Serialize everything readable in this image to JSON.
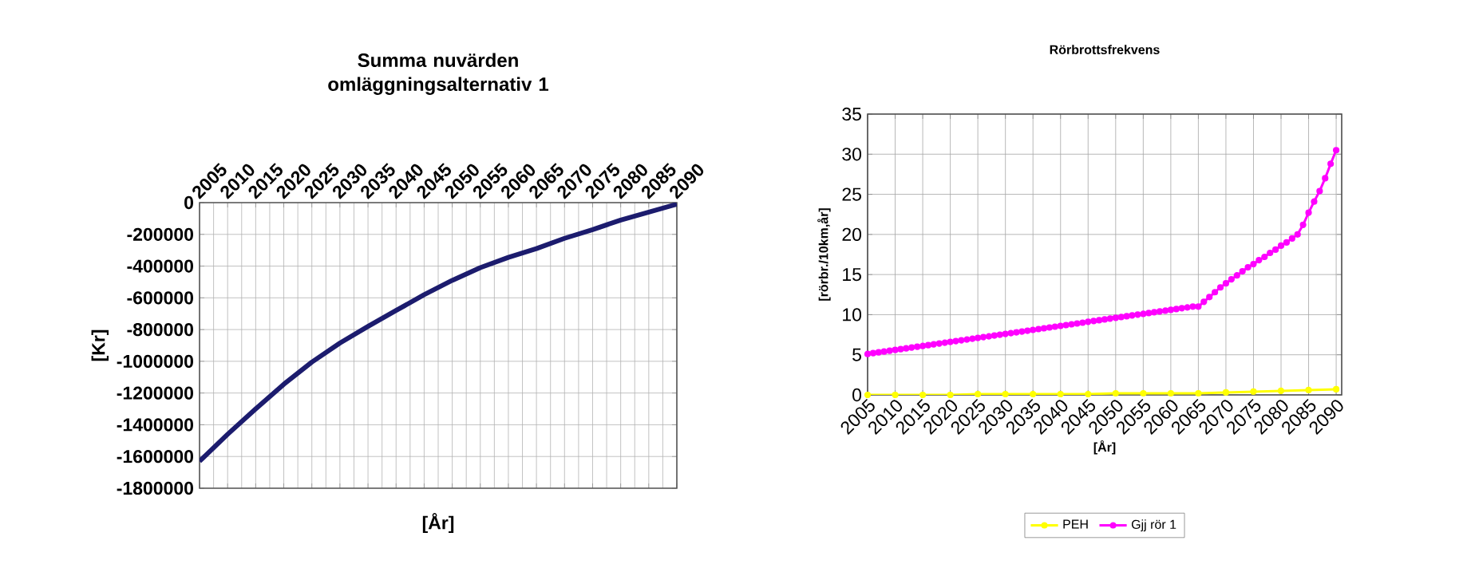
{
  "chart_data": [
    {
      "type": "line",
      "title": "Summa nuvärden omläggningsalternativ 1",
      "xlabel": "[År]",
      "ylabel": "[Kr]",
      "x": [
        2005,
        2010,
        2015,
        2020,
        2025,
        2030,
        2035,
        2040,
        2045,
        2050,
        2055,
        2060,
        2065,
        2070,
        2075,
        2080,
        2085,
        2090
      ],
      "values": [
        -1630000,
        -1460000,
        -1300000,
        -1145000,
        -1005000,
        -885000,
        -780000,
        -680000,
        -580000,
        -490000,
        -410000,
        -345000,
        -290000,
        -225000,
        -170000,
        -110000,
        -60000,
        -10000
      ],
      "color": "#1c1c6e",
      "xlim": [
        2005,
        2090
      ],
      "xticks": [
        2005,
        2010,
        2015,
        2020,
        2025,
        2030,
        2035,
        2040,
        2045,
        2050,
        2055,
        2060,
        2065,
        2070,
        2075,
        2080,
        2085,
        2090
      ],
      "ylim": [
        -1800000,
        0
      ],
      "yticks": [
        -1800000,
        -1600000,
        -1400000,
        -1200000,
        -1000000,
        -800000,
        -600000,
        -400000,
        -200000,
        0
      ],
      "grid": true,
      "marker": "none"
    },
    {
      "type": "line",
      "title": "Rörbrottsfrekvens",
      "xlabel": "[År]",
      "ylabel": "[rörbr./10km,år]",
      "series": [
        {
          "name": "PEH",
          "color": "#ffff00",
          "x": [
            2005,
            2010,
            2015,
            2020,
            2025,
            2030,
            2035,
            2040,
            2045,
            2050,
            2055,
            2060,
            2065,
            2070,
            2075,
            2080,
            2085,
            2090
          ],
          "values": [
            0.0,
            0.0,
            0.0,
            0.0,
            0.1,
            0.1,
            0.1,
            0.1,
            0.1,
            0.2,
            0.2,
            0.2,
            0.2,
            0.3,
            0.4,
            0.5,
            0.6,
            0.7
          ]
        },
        {
          "name": "Gjj rör 1",
          "color": "#ff00ff",
          "x": [
            2005,
            2006,
            2007,
            2008,
            2009,
            2010,
            2011,
            2012,
            2013,
            2014,
            2015,
            2016,
            2017,
            2018,
            2019,
            2020,
            2021,
            2022,
            2023,
            2024,
            2025,
            2026,
            2027,
            2028,
            2029,
            2030,
            2031,
            2032,
            2033,
            2034,
            2035,
            2036,
            2037,
            2038,
            2039,
            2040,
            2041,
            2042,
            2043,
            2044,
            2045,
            2046,
            2047,
            2048,
            2049,
            2050,
            2051,
            2052,
            2053,
            2054,
            2055,
            2056,
            2057,
            2058,
            2059,
            2060,
            2061,
            2062,
            2063,
            2064,
            2065,
            2066,
            2067,
            2068,
            2069,
            2070,
            2071,
            2072,
            2073,
            2074,
            2075,
            2076,
            2077,
            2078,
            2079,
            2080,
            2081,
            2082,
            2083,
            2084,
            2085,
            2086,
            2087,
            2088,
            2089,
            2090
          ],
          "values": [
            5.1,
            5.2,
            5.3,
            5.4,
            5.5,
            5.6,
            5.7,
            5.8,
            5.9,
            6.0,
            6.1,
            6.2,
            6.3,
            6.4,
            6.5,
            6.6,
            6.7,
            6.8,
            6.9,
            7.0,
            7.1,
            7.2,
            7.3,
            7.4,
            7.5,
            7.6,
            7.7,
            7.8,
            7.9,
            8.0,
            8.1,
            8.2,
            8.3,
            8.4,
            8.5,
            8.6,
            8.7,
            8.8,
            8.9,
            9.0,
            9.1,
            9.2,
            9.3,
            9.4,
            9.5,
            9.6,
            9.7,
            9.8,
            9.9,
            10.0,
            10.1,
            10.2,
            10.3,
            10.4,
            10.5,
            10.6,
            10.7,
            10.8,
            10.9,
            11.0,
            11.0,
            11.6,
            12.2,
            12.8,
            13.4,
            13.9,
            14.4,
            14.9,
            15.4,
            15.9,
            16.3,
            16.8,
            17.2,
            17.7,
            18.1,
            18.6,
            19.0,
            19.5,
            20.0,
            21.2,
            22.7,
            24.1,
            25.4,
            27.0,
            28.8,
            30.5
          ]
        }
      ],
      "xlim": [
        2005,
        2091
      ],
      "xticks": [
        2005,
        2010,
        2015,
        2020,
        2025,
        2030,
        2035,
        2040,
        2045,
        2050,
        2055,
        2060,
        2065,
        2070,
        2075,
        2080,
        2085,
        2090
      ],
      "ylim": [
        0,
        35
      ],
      "yticks": [
        0,
        5,
        10,
        15,
        20,
        25,
        30,
        35
      ],
      "grid": true,
      "marker": "circle",
      "legend": "bottom"
    }
  ]
}
